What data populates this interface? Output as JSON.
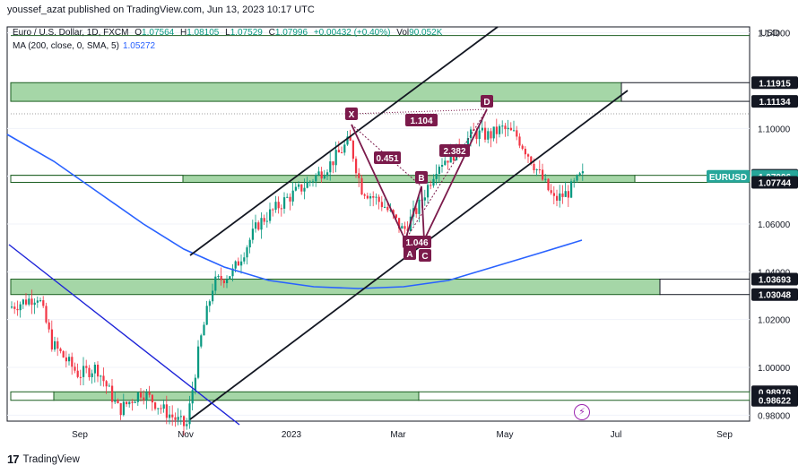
{
  "caption": "youssef_azat published on TradingView.com, Jun 13, 2023 10:17 UTC",
  "legend": {
    "symbol": "Euro / U.S. Dollar, 1D, FXCM",
    "o_label": "O",
    "o": "1.07564",
    "h_label": "H",
    "h": "1.08105",
    "l_label": "L",
    "l": "1.07529",
    "c_label": "C",
    "c": "1.07996",
    "change": "+0.00432 (+0.40%)",
    "vol_label": "Vol",
    "vol": "90.052K",
    "ma_label": "MA (200, close, 0, SMA, 5)",
    "ma_value": "1.05272"
  },
  "footer": {
    "logo": "17",
    "text": "TradingView"
  },
  "colors": {
    "up": "#089981",
    "down": "#f23645",
    "ma": "#2962ff",
    "zone_fill": "#a5d6a7",
    "zone_border": "#1b5e20",
    "pattern": "#7b1a4b",
    "trendline": "#131722",
    "downtrend": "#1d23d8",
    "price_label": "#26a69a",
    "grid": "#f0f3fa"
  },
  "chart_data": {
    "type": "candlestick",
    "currency": "USD",
    "x_labels": [
      "Sep",
      "Nov",
      "2023",
      "Mar",
      "May",
      "Jul",
      "Sep"
    ],
    "y_ticks": [
      "1.14000",
      "1.10000",
      "1.08000",
      "1.06000",
      "1.04000",
      "1.02000",
      "1.00000",
      "0.98000"
    ],
    "ylim": [
      0.9775,
      1.1425
    ],
    "price_labels": [
      {
        "text": "1.11915",
        "value": 1.11915,
        "style": "level"
      },
      {
        "text": "1.11134",
        "value": 1.11134,
        "style": "level"
      },
      {
        "text": "1.08037",
        "value": 1.08037,
        "style": "level"
      },
      {
        "text": "EURUSD",
        "value": 1.07996,
        "style": "symbol"
      },
      {
        "text": "1.07996",
        "value": 1.07996,
        "style": "price"
      },
      {
        "text": "1.07744",
        "value": 1.07744,
        "style": "level"
      },
      {
        "text": "1.03693",
        "value": 1.03693,
        "style": "level"
      },
      {
        "text": "1.03048",
        "value": 1.03048,
        "style": "level"
      },
      {
        "text": "0.98976",
        "value": 0.98976,
        "style": "level"
      },
      {
        "text": "0.98622",
        "value": 0.98622,
        "style": "level"
      }
    ],
    "harmonic_pattern": {
      "points": [
        "X",
        "A",
        "B",
        "C",
        "D"
      ],
      "ratios": [
        "1.104",
        "0.451",
        "2.382",
        "1.046"
      ]
    },
    "last_close": 1.07996,
    "ma_last": 1.05272
  }
}
